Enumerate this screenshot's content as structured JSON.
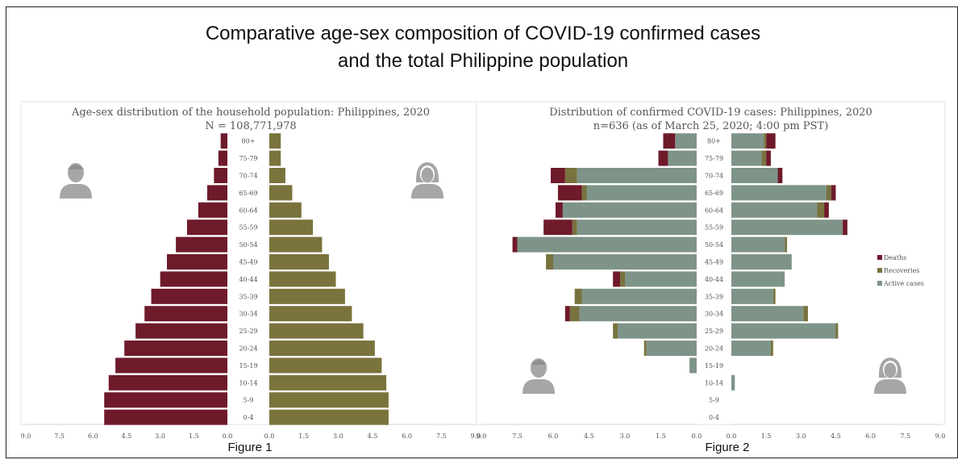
{
  "heading": {
    "line1": "Comparative age-sex composition of COVID-19 confirmed cases",
    "line2": "and the total Philippine population"
  },
  "captions": {
    "fig1": "Figure 1",
    "fig2": "Figure 2"
  },
  "colors": {
    "male": "#6e1a2b",
    "female": "#7a733c",
    "deaths": "#6e1a2b",
    "recoveries": "#78723e",
    "active": "#7e9488",
    "icon": "#a6a6a6"
  },
  "icons": {
    "male": "person-male-icon",
    "female": "person-female-icon"
  },
  "chart_data": [
    {
      "type": "bar",
      "subtype": "population-pyramid",
      "title": "Age-sex distribution of the household population: Philippines, 2020",
      "subtitle": "N = 108,771,978",
      "categories": [
        "80+",
        "75-79",
        "70-74",
        "65-69",
        "60-64",
        "55-59",
        "50-54",
        "45-49",
        "40-44",
        "35-39",
        "30-34",
        "25-29",
        "20-24",
        "15-19",
        "10-14",
        "5-9",
        "0-4"
      ],
      "xlim": [
        -9,
        9
      ],
      "xticks": [
        "9.0",
        "7.5",
        "6.0",
        "4.5",
        "3.0",
        "1.5",
        "0.0",
        "0.0",
        "1.5",
        "3.0",
        "4.5",
        "6.0",
        "7.5",
        "9.0"
      ],
      "series": [
        {
          "side": "left",
          "values": [
            0.3,
            0.4,
            0.6,
            0.9,
            1.3,
            1.8,
            2.3,
            2.7,
            3.0,
            3.4,
            3.7,
            4.1,
            4.6,
            5.0,
            5.3,
            5.5,
            5.5
          ]
        },
        {
          "side": "right",
          "values": [
            0.5,
            0.5,
            0.7,
            1.0,
            1.4,
            1.9,
            2.3,
            2.6,
            2.9,
            3.3,
            3.6,
            4.1,
            4.6,
            4.9,
            5.1,
            5.2,
            5.2
          ]
        }
      ]
    },
    {
      "type": "bar",
      "subtype": "population-pyramid-stacked",
      "title": "Distribution of confirmed COVID-19 cases: Philippines, 2020",
      "subtitle": "n=636 (as of March 25, 2020; 4:00 pm PST)",
      "categories": [
        "80+",
        "75-79",
        "70-74",
        "65-69",
        "60-64",
        "55-59",
        "50-54",
        "45-49",
        "40-44",
        "35-39",
        "30-34",
        "25-29",
        "20-24",
        "15-19",
        "10-14",
        "5-9",
        "0-4"
      ],
      "xlim": [
        -9,
        9
      ],
      "xticks": [
        "9.0",
        "7.5",
        "6.0",
        "4.5",
        "3.0",
        "1.5",
        "0.0",
        "0.0",
        "1.5",
        "3.0",
        "4.5",
        "6.0",
        "7.5",
        "9.0"
      ],
      "legend": [
        "Deaths",
        "Recoveries",
        "Active cases"
      ],
      "legend_position": "right",
      "series": [
        {
          "name": "Active cases",
          "side": "left",
          "values": [
            0.9,
            1.2,
            5.0,
            4.6,
            5.6,
            5.0,
            7.5,
            6.0,
            3.0,
            4.8,
            4.9,
            3.3,
            2.1,
            0.3,
            0,
            0,
            0
          ]
        },
        {
          "name": "Recoveries",
          "side": "left",
          "values": [
            0,
            0,
            0.5,
            0.2,
            0,
            0.2,
            0,
            0.3,
            0.2,
            0.3,
            0.4,
            0.2,
            0.1,
            0,
            0,
            0,
            0
          ]
        },
        {
          "name": "Deaths",
          "side": "left",
          "values": [
            0.5,
            0.4,
            0.6,
            1.0,
            0.3,
            1.2,
            0.2,
            0,
            0.3,
            0,
            0.2,
            0,
            0,
            0,
            0,
            0,
            0
          ]
        },
        {
          "name": "Active cases",
          "side": "right",
          "values": [
            1.4,
            1.3,
            2.0,
            4.1,
            3.7,
            4.8,
            2.3,
            2.6,
            2.3,
            1.8,
            3.1,
            4.5,
            1.7,
            0,
            0.15,
            0,
            0
          ]
        },
        {
          "name": "Recoveries",
          "side": "right",
          "values": [
            0.1,
            0.2,
            0,
            0.2,
            0.3,
            0,
            0.1,
            0,
            0,
            0.1,
            0.2,
            0.1,
            0.1,
            0,
            0,
            0,
            0
          ]
        },
        {
          "name": "Deaths",
          "side": "right",
          "values": [
            0.4,
            0.2,
            0.2,
            0.2,
            0.2,
            0.2,
            0,
            0,
            0,
            0,
            0,
            0,
            0,
            0,
            0,
            0,
            0
          ]
        }
      ]
    }
  ]
}
